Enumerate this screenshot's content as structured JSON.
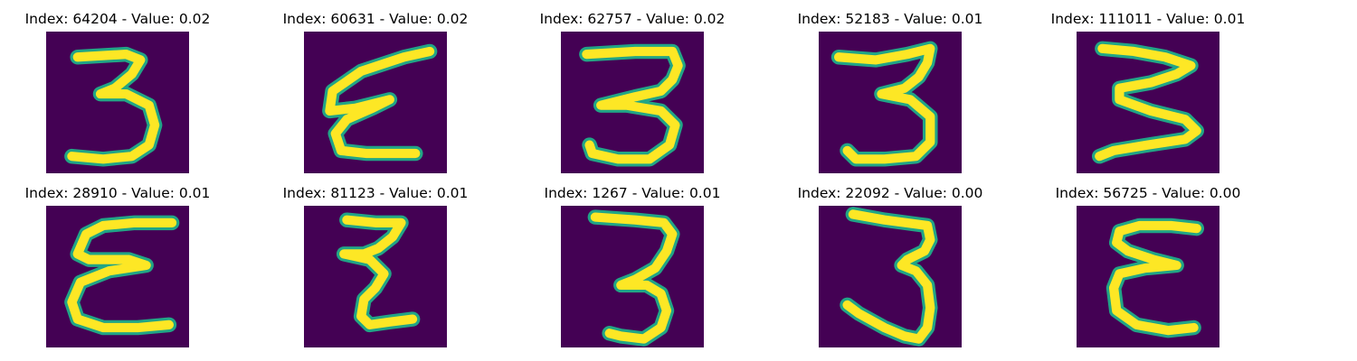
{
  "figure": {
    "colormap": {
      "background": "#440154",
      "stroke_edge": "#21a586",
      "stroke_core": "#fde725"
    }
  },
  "chart_data": {
    "type": "image_grid",
    "rows": 2,
    "cols": 5,
    "panels": [
      {
        "title": "Index: 64204 - Value: 0.02",
        "index": 64204,
        "value": 0.02,
        "glyph": "3"
      },
      {
        "title": "Index: 60631 - Value: 0.02",
        "index": 60631,
        "value": 0.02,
        "glyph": "3-mirrored"
      },
      {
        "title": "Index: 62757 - Value: 0.02",
        "index": 62757,
        "value": 0.02,
        "glyph": "3"
      },
      {
        "title": "Index: 52183 - Value: 0.01",
        "index": 52183,
        "value": 0.01,
        "glyph": "3"
      },
      {
        "title": "Index: 111011 - Value: 0.01",
        "index": 111011,
        "value": 0.01,
        "glyph": "3"
      },
      {
        "title": "Index: 28910 - Value: 0.01",
        "index": 28910,
        "value": 0.01,
        "glyph": "3-mirrored"
      },
      {
        "title": "Index: 81123 - Value: 0.01",
        "index": 81123,
        "value": 0.01,
        "glyph": "3-mirrored"
      },
      {
        "title": "Index: 1267 - Value: 0.01",
        "index": 1267,
        "value": 0.01,
        "glyph": "3"
      },
      {
        "title": "Index: 22092 - Value: 0.00",
        "index": 22092,
        "value": 0.0,
        "glyph": "3"
      },
      {
        "title": "Index: 56725 - Value: 0.00",
        "index": 56725,
        "value": 0.0,
        "glyph": "3-mirrored"
      }
    ]
  }
}
